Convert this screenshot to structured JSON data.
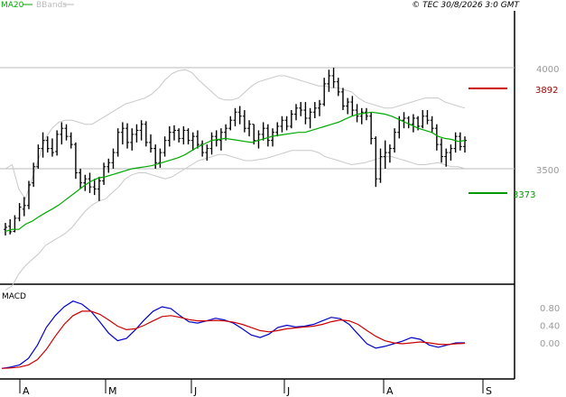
{
  "chart_data": {
    "type": "ohlc",
    "header": {
      "legend": [
        {
          "label": "MA20",
          "color": "#00aa00"
        },
        {
          "label": "BBands",
          "color": "#bbbbbb"
        }
      ],
      "copyright": "© TEC 30/8/2026 3:0 GMT"
    },
    "price_axis": {
      "ticks": [
        {
          "label": "4000",
          "value": 4000
        },
        {
          "label": "3500",
          "value": 3500
        }
      ],
      "ylim": [
        2950,
        4050
      ]
    },
    "levels": [
      {
        "name": "resistance",
        "label": "3892",
        "value": 3892,
        "color": "#cc0000"
      },
      {
        "name": "support",
        "label": "3373",
        "value": 3373,
        "color": "#009900"
      }
    ],
    "gridlines": [
      4000,
      3500
    ],
    "x_labels": [
      "A",
      "M",
      "J",
      "J",
      "A",
      "S"
    ],
    "macd": {
      "title": "MACD",
      "ticks": [
        {
          "label": "0.80",
          "value": 0.8
        },
        {
          "label": "0.40",
          "value": 0.4
        },
        {
          "label": "0.00",
          "value": 0.0
        }
      ],
      "ylim": [
        -0.6,
        1.1
      ],
      "series": [
        {
          "name": "MACD",
          "color": "#0000cc",
          "values": [
            -0.58,
            -0.55,
            -0.5,
            -0.35,
            -0.05,
            0.35,
            0.62,
            0.82,
            0.95,
            0.88,
            0.72,
            0.48,
            0.22,
            0.05,
            0.1,
            0.3,
            0.52,
            0.72,
            0.82,
            0.78,
            0.62,
            0.48,
            0.45,
            0.5,
            0.56,
            0.52,
            0.45,
            0.32,
            0.18,
            0.12,
            0.2,
            0.35,
            0.4,
            0.36,
            0.38,
            0.42,
            0.5,
            0.58,
            0.55,
            0.42,
            0.2,
            -0.02,
            -0.12,
            -0.08,
            -0.02,
            0.04,
            0.12,
            0.08,
            -0.05,
            -0.1,
            -0.05,
            0.0,
            0.0
          ]
        },
        {
          "name": "Signal",
          "color": "#cc0000",
          "values": [
            -0.58,
            -0.57,
            -0.55,
            -0.5,
            -0.38,
            -0.15,
            0.15,
            0.42,
            0.62,
            0.72,
            0.72,
            0.65,
            0.52,
            0.38,
            0.3,
            0.32,
            0.4,
            0.5,
            0.6,
            0.62,
            0.58,
            0.53,
            0.5,
            0.5,
            0.51,
            0.5,
            0.47,
            0.42,
            0.35,
            0.28,
            0.25,
            0.28,
            0.32,
            0.34,
            0.36,
            0.38,
            0.42,
            0.48,
            0.52,
            0.5,
            0.42,
            0.28,
            0.15,
            0.05,
            0.0,
            -0.02,
            0.0,
            0.02,
            0.0,
            -0.03,
            -0.04,
            -0.02,
            -0.01
          ]
        }
      ]
    },
    "bars": [
      {
        "o": 3200,
        "h": 3232,
        "l": 3170,
        "c": 3210
      },
      {
        "o": 3215,
        "h": 3250,
        "l": 3175,
        "c": 3188
      },
      {
        "o": 3190,
        "h": 3270,
        "l": 3185,
        "c": 3255
      },
      {
        "o": 3255,
        "h": 3330,
        "l": 3240,
        "c": 3310
      },
      {
        "o": 3300,
        "h": 3360,
        "l": 3265,
        "c": 3318
      },
      {
        "o": 3318,
        "h": 3440,
        "l": 3300,
        "c": 3420
      },
      {
        "o": 3430,
        "h": 3530,
        "l": 3410,
        "c": 3510
      },
      {
        "o": 3510,
        "h": 3620,
        "l": 3500,
        "c": 3600
      },
      {
        "o": 3600,
        "h": 3680,
        "l": 3555,
        "c": 3640
      },
      {
        "o": 3640,
        "h": 3660,
        "l": 3580,
        "c": 3600
      },
      {
        "o": 3600,
        "h": 3650,
        "l": 3560,
        "c": 3580
      },
      {
        "o": 3585,
        "h": 3690,
        "l": 3565,
        "c": 3670
      },
      {
        "o": 3670,
        "h": 3730,
        "l": 3620,
        "c": 3700
      },
      {
        "o": 3700,
        "h": 3720,
        "l": 3640,
        "c": 3660
      },
      {
        "o": 3660,
        "h": 3680,
        "l": 3600,
        "c": 3620
      },
      {
        "o": 3620,
        "h": 3630,
        "l": 3450,
        "c": 3480
      },
      {
        "o": 3480,
        "h": 3500,
        "l": 3400,
        "c": 3430
      },
      {
        "o": 3430,
        "h": 3470,
        "l": 3390,
        "c": 3450
      },
      {
        "o": 3450,
        "h": 3480,
        "l": 3380,
        "c": 3410
      },
      {
        "o": 3410,
        "h": 3450,
        "l": 3370,
        "c": 3400
      },
      {
        "o": 3400,
        "h": 3460,
        "l": 3340,
        "c": 3440
      },
      {
        "o": 3440,
        "h": 3530,
        "l": 3420,
        "c": 3510
      },
      {
        "o": 3510,
        "h": 3550,
        "l": 3480,
        "c": 3530
      },
      {
        "o": 3530,
        "h": 3600,
        "l": 3500,
        "c": 3580
      },
      {
        "o": 3580,
        "h": 3700,
        "l": 3560,
        "c": 3680
      },
      {
        "o": 3680,
        "h": 3730,
        "l": 3620,
        "c": 3700
      },
      {
        "o": 3700,
        "h": 3725,
        "l": 3600,
        "c": 3630
      },
      {
        "o": 3630,
        "h": 3700,
        "l": 3590,
        "c": 3670
      },
      {
        "o": 3670,
        "h": 3720,
        "l": 3630,
        "c": 3690
      },
      {
        "o": 3690,
        "h": 3740,
        "l": 3640,
        "c": 3720
      },
      {
        "o": 3720,
        "h": 3735,
        "l": 3610,
        "c": 3630
      },
      {
        "o": 3630,
        "h": 3670,
        "l": 3580,
        "c": 3600
      },
      {
        "o": 3600,
        "h": 3620,
        "l": 3500,
        "c": 3530
      },
      {
        "o": 3530,
        "h": 3600,
        "l": 3505,
        "c": 3580
      },
      {
        "o": 3580,
        "h": 3660,
        "l": 3560,
        "c": 3640
      },
      {
        "o": 3640,
        "h": 3710,
        "l": 3610,
        "c": 3680
      },
      {
        "o": 3680,
        "h": 3715,
        "l": 3640,
        "c": 3690
      },
      {
        "o": 3690,
        "h": 3700,
        "l": 3630,
        "c": 3650
      },
      {
        "o": 3650,
        "h": 3710,
        "l": 3620,
        "c": 3690
      },
      {
        "o": 3690,
        "h": 3700,
        "l": 3620,
        "c": 3640
      },
      {
        "o": 3640,
        "h": 3680,
        "l": 3590,
        "c": 3660
      },
      {
        "o": 3660,
        "h": 3690,
        "l": 3600,
        "c": 3620
      },
      {
        "o": 3620,
        "h": 3640,
        "l": 3560,
        "c": 3580
      },
      {
        "o": 3580,
        "h": 3620,
        "l": 3540,
        "c": 3600
      },
      {
        "o": 3600,
        "h": 3680,
        "l": 3570,
        "c": 3660
      },
      {
        "o": 3660,
        "h": 3690,
        "l": 3610,
        "c": 3640
      },
      {
        "o": 3640,
        "h": 3700,
        "l": 3590,
        "c": 3680
      },
      {
        "o": 3680,
        "h": 3720,
        "l": 3640,
        "c": 3700
      },
      {
        "o": 3700,
        "h": 3760,
        "l": 3690,
        "c": 3740
      },
      {
        "o": 3740,
        "h": 3800,
        "l": 3710,
        "c": 3780
      },
      {
        "o": 3780,
        "h": 3810,
        "l": 3720,
        "c": 3760
      },
      {
        "o": 3760,
        "h": 3790,
        "l": 3680,
        "c": 3700
      },
      {
        "o": 3700,
        "h": 3740,
        "l": 3660,
        "c": 3720
      },
      {
        "o": 3720,
        "h": 3720,
        "l": 3620,
        "c": 3640
      },
      {
        "o": 3640,
        "h": 3690,
        "l": 3600,
        "c": 3670
      },
      {
        "o": 3670,
        "h": 3730,
        "l": 3640,
        "c": 3700
      },
      {
        "o": 3700,
        "h": 3720,
        "l": 3610,
        "c": 3640
      },
      {
        "o": 3640,
        "h": 3700,
        "l": 3610,
        "c": 3680
      },
      {
        "o": 3680,
        "h": 3730,
        "l": 3660,
        "c": 3710
      },
      {
        "o": 3710,
        "h": 3760,
        "l": 3680,
        "c": 3740
      },
      {
        "o": 3740,
        "h": 3760,
        "l": 3690,
        "c": 3710
      },
      {
        "o": 3710,
        "h": 3790,
        "l": 3700,
        "c": 3770
      },
      {
        "o": 3770,
        "h": 3820,
        "l": 3740,
        "c": 3800
      },
      {
        "o": 3800,
        "h": 3830,
        "l": 3760,
        "c": 3790
      },
      {
        "o": 3790,
        "h": 3830,
        "l": 3720,
        "c": 3750
      },
      {
        "o": 3750,
        "h": 3800,
        "l": 3700,
        "c": 3780
      },
      {
        "o": 3780,
        "h": 3830,
        "l": 3750,
        "c": 3800
      },
      {
        "o": 3800,
        "h": 3840,
        "l": 3760,
        "c": 3820
      },
      {
        "o": 3820,
        "h": 3950,
        "l": 3810,
        "c": 3920
      },
      {
        "o": 3920,
        "h": 3990,
        "l": 3880,
        "c": 3960
      },
      {
        "o": 3960,
        "h": 4000,
        "l": 3900,
        "c": 3930
      },
      {
        "o": 3930,
        "h": 3950,
        "l": 3860,
        "c": 3880
      },
      {
        "o": 3880,
        "h": 3900,
        "l": 3790,
        "c": 3810
      },
      {
        "o": 3810,
        "h": 3850,
        "l": 3770,
        "c": 3830
      },
      {
        "o": 3830,
        "h": 3860,
        "l": 3760,
        "c": 3790
      },
      {
        "o": 3790,
        "h": 3820,
        "l": 3730,
        "c": 3760
      },
      {
        "o": 3760,
        "h": 3800,
        "l": 3720,
        "c": 3780
      },
      {
        "o": 3780,
        "h": 3800,
        "l": 3740,
        "c": 3760
      },
      {
        "o": 3760,
        "h": 3780,
        "l": 3620,
        "c": 3650
      },
      {
        "o": 3650,
        "h": 3660,
        "l": 3410,
        "c": 3450
      },
      {
        "o": 3450,
        "h": 3600,
        "l": 3430,
        "c": 3560
      },
      {
        "o": 3560,
        "h": 3640,
        "l": 3500,
        "c": 3580
      },
      {
        "o": 3580,
        "h": 3620,
        "l": 3530,
        "c": 3600
      },
      {
        "o": 3600,
        "h": 3700,
        "l": 3580,
        "c": 3680
      },
      {
        "o": 3680,
        "h": 3760,
        "l": 3650,
        "c": 3740
      },
      {
        "o": 3740,
        "h": 3780,
        "l": 3700,
        "c": 3750
      },
      {
        "o": 3750,
        "h": 3760,
        "l": 3700,
        "c": 3720
      },
      {
        "o": 3720,
        "h": 3770,
        "l": 3680,
        "c": 3750
      },
      {
        "o": 3750,
        "h": 3760,
        "l": 3690,
        "c": 3710
      },
      {
        "o": 3710,
        "h": 3790,
        "l": 3700,
        "c": 3760
      },
      {
        "o": 3760,
        "h": 3790,
        "l": 3720,
        "c": 3740
      },
      {
        "o": 3740,
        "h": 3760,
        "l": 3680,
        "c": 3700
      },
      {
        "o": 3700,
        "h": 3720,
        "l": 3590,
        "c": 3620
      },
      {
        "o": 3620,
        "h": 3650,
        "l": 3530,
        "c": 3560
      },
      {
        "o": 3560,
        "h": 3600,
        "l": 3510,
        "c": 3580
      },
      {
        "o": 3580,
        "h": 3620,
        "l": 3540,
        "c": 3600
      },
      {
        "o": 3600,
        "h": 3680,
        "l": 3580,
        "c": 3660
      },
      {
        "o": 3660,
        "h": 3680,
        "l": 3590,
        "c": 3610
      },
      {
        "o": 3610,
        "h": 3660,
        "l": 3580,
        "c": 3640
      }
    ],
    "ma20": [
      3190,
      3200,
      3200,
      3225,
      3240,
      3262,
      3282,
      3300,
      3320,
      3345,
      3370,
      3395,
      3420,
      3440,
      3455,
      3460,
      3470,
      3480,
      3490,
      3500,
      3505,
      3510,
      3515,
      3525,
      3535,
      3545,
      3555,
      3570,
      3590,
      3610,
      3625,
      3640,
      3645,
      3650,
      3645,
      3640,
      3635,
      3630,
      3640,
      3650,
      3660,
      3665,
      3670,
      3675,
      3680,
      3680,
      3690,
      3700,
      3710,
      3720,
      3730,
      3745,
      3760,
      3770,
      3775,
      3780,
      3775,
      3770,
      3760,
      3745,
      3730,
      3715,
      3700,
      3690,
      3680,
      3660,
      3650,
      3645,
      3635,
      3640
    ],
    "bb_upper": [
      3500,
      3520,
      3400,
      3350,
      3450,
      3550,
      3650,
      3700,
      3730,
      3740,
      3740,
      3730,
      3720,
      3720,
      3740,
      3760,
      3780,
      3800,
      3820,
      3830,
      3840,
      3850,
      3870,
      3900,
      3940,
      3970,
      3985,
      3990,
      3975,
      3940,
      3910,
      3880,
      3850,
      3840,
      3840,
      3850,
      3880,
      3910,
      3930,
      3940,
      3950,
      3960,
      3960,
      3950,
      3940,
      3930,
      3920,
      3910,
      3910,
      3900,
      3900,
      3890,
      3880,
      3850,
      3830,
      3820,
      3810,
      3800,
      3800,
      3810,
      3820,
      3830,
      3840,
      3850,
      3850,
      3850,
      3830,
      3820,
      3810,
      3800
    ],
    "bb_lower": [
      2900,
      2920,
      2980,
      3020,
      3050,
      3080,
      3120,
      3140,
      3160,
      3180,
      3210,
      3250,
      3290,
      3320,
      3340,
      3350,
      3380,
      3410,
      3450,
      3470,
      3480,
      3480,
      3470,
      3460,
      3450,
      3460,
      3480,
      3500,
      3520,
      3540,
      3550,
      3560,
      3570,
      3570,
      3560,
      3550,
      3540,
      3540,
      3545,
      3550,
      3560,
      3570,
      3580,
      3590,
      3590,
      3590,
      3590,
      3580,
      3560,
      3550,
      3540,
      3530,
      3520,
      3525,
      3530,
      3540,
      3550,
      3560,
      3560,
      3550,
      3540,
      3530,
      3520,
      3520,
      3525,
      3530,
      3520,
      3510,
      3510,
      3500
    ]
  }
}
